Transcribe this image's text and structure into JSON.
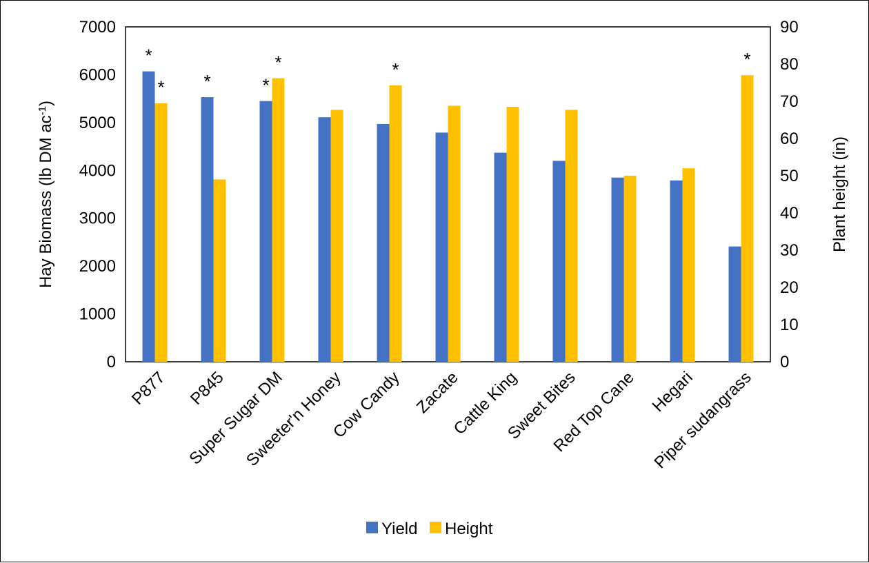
{
  "chart_data": {
    "type": "bar",
    "categories": [
      "P877",
      "P845",
      "Super Sugar DM",
      "Sweeter'n Honey",
      "Cow Candy",
      "Zacate",
      "Cattle King",
      "Sweet Bites",
      "Red Top Cane",
      "Hegari",
      "Piper sudangrass"
    ],
    "series": [
      {
        "name": "Yield",
        "axis": "left",
        "color": "#4472C4",
        "values": [
          6070,
          5530,
          5450,
          5110,
          4970,
          4790,
          4370,
          4200,
          3850,
          3790,
          2410
        ],
        "significant": [
          true,
          true,
          true,
          false,
          false,
          false,
          false,
          false,
          false,
          false,
          false
        ]
      },
      {
        "name": "Height",
        "axis": "right",
        "color": "#FFC000",
        "values": [
          69.5,
          49,
          76.2,
          67.7,
          74.3,
          68.8,
          68.5,
          67.7,
          50,
          52,
          77
        ],
        "significant": [
          true,
          false,
          true,
          false,
          true,
          false,
          false,
          false,
          false,
          false,
          true
        ]
      }
    ],
    "significance_marker": "*",
    "ylabel_left": "Hay Biomass (lb DM ac",
    "ylabel_left_superscript": "-1",
    "ylabel_left_close": ")",
    "ylabel_right": "Plant height (in)",
    "ylim_left": [
      0,
      7000
    ],
    "yticks_left": [
      "0",
      "1000",
      "2000",
      "3000",
      "4000",
      "5000",
      "6000",
      "7000"
    ],
    "ylim_right": [
      0,
      90
    ],
    "yticks_right": [
      "0",
      "10",
      "20",
      "30",
      "40",
      "50",
      "60",
      "70",
      "80",
      "90"
    ],
    "grid": false,
    "legend_position": "bottom"
  }
}
